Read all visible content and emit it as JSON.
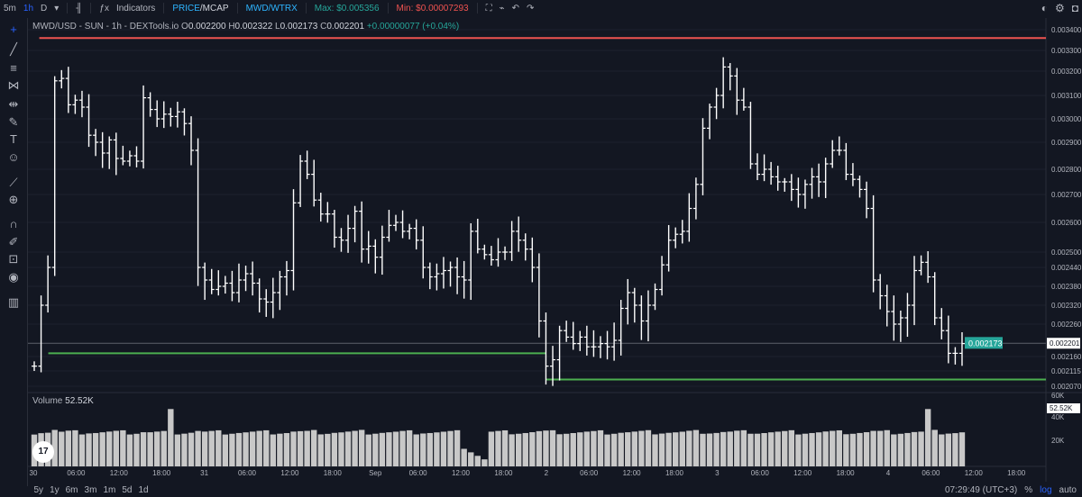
{
  "topbar": {
    "intervals": [
      "5m",
      "1h",
      "D"
    ],
    "indicators_label": "Indicators",
    "price_label": "PRICE",
    "mcap_label": "MCAP",
    "pair_toggle": "MWD/WTRX",
    "max_label": "Max: $0.005356",
    "min_label": "Min: $0.00007293",
    "icons": [
      "bar-style-icon",
      "indicators-icon",
      "fullscreen-icon",
      "chart-icon",
      "undo-icon",
      "redo-icon",
      "settings-icon",
      "camera-icon",
      "theme-icon"
    ]
  },
  "legend": {
    "symbol": "MWD/USD - SUN - 1h - DEXTools.io",
    "o_label": "O",
    "o_value": "0.002200",
    "h_label": "H",
    "h_value": "0.002322",
    "l_label": "L",
    "l_value": "0.002173",
    "c_label": "C",
    "c_value": "0.002201",
    "change": "+0.00000077 (+0.04%)"
  },
  "left_tools": [
    "crosshair-icon",
    "trendline-icon",
    "fib-icon",
    "pattern-icon",
    "prediction-icon",
    "brush-icon",
    "text-icon",
    "emoji-icon",
    "ruler-icon",
    "zoom-icon",
    "magnet-icon",
    "lock-drawings-icon",
    "lock-icon",
    "eye-icon",
    "trash-icon"
  ],
  "volume": {
    "label": "Volume",
    "value": "52.52K"
  },
  "tv_logo": "17",
  "bottombar": {
    "ranges": [
      "5y",
      "1y",
      "6m",
      "3m",
      "1m",
      "5d",
      "1d"
    ],
    "clock": "07:29:49 (UTC+3)",
    "percent": "%",
    "log": "log",
    "auto": "auto"
  },
  "colors": {
    "background": "#131722",
    "resistance": "#ef5350",
    "support": "#4caf50",
    "bars": "#ffffff",
    "volume": "#c8c8c8",
    "price_tag": "#26a69a"
  },
  "chart_data": {
    "type": "ohlc",
    "price_axis": {
      "ticks": [
        "0.003400",
        "0.003300",
        "0.003200",
        "0.003100",
        "0.003000",
        "0.002900",
        "0.002800",
        "0.002700",
        "0.002600",
        "0.002500",
        "0.002440",
        "0.002380",
        "0.002320",
        "0.002260",
        "0.002160",
        "0.002115",
        "0.002070"
      ],
      "current_price": "0.002201",
      "last_tag": "0.002173",
      "ylim": [
        0.00205,
        0.00343
      ]
    },
    "time_axis": [
      "30",
      "06:00",
      "12:00",
      "18:00",
      "31",
      "06:00",
      "12:00",
      "18:00",
      "Sep",
      "06:00",
      "12:00",
      "18:00",
      "2",
      "06:00",
      "12:00",
      "18:00",
      "3",
      "06:00",
      "12:00",
      "18:00",
      "4",
      "06:00",
      "12:00",
      "18:00"
    ],
    "volume_axis": [
      "60K",
      "40K",
      "20K"
    ],
    "resistance_level": 0.00336,
    "support_levels": [
      0.00217,
      0.00209
    ],
    "closes": [
      0.00213,
      0.00232,
      0.00244,
      0.00316,
      0.00317,
      0.00306,
      0.00308,
      0.00305,
      0.00293,
      0.0029,
      0.00286,
      0.00291,
      0.00284,
      0.00283,
      0.00285,
      0.00283,
      0.00309,
      0.00304,
      0.003,
      0.00302,
      0.00301,
      0.00303,
      0.00298,
      0.00287,
      0.00244,
      0.0024,
      0.00237,
      0.00238,
      0.00239,
      0.00236,
      0.0024,
      0.00242,
      0.00239,
      0.00234,
      0.00233,
      0.00236,
      0.00241,
      0.00243,
      0.00267,
      0.00283,
      0.00278,
      0.00268,
      0.00263,
      0.00263,
      0.00255,
      0.00254,
      0.00258,
      0.00264,
      0.00251,
      0.00252,
      0.00248,
      0.00255,
      0.00259,
      0.0026,
      0.00257,
      0.00258,
      0.00254,
      0.00244,
      0.00241,
      0.00242,
      0.00243,
      0.00244,
      0.00241,
      0.0024,
      0.00257,
      0.00251,
      0.00249,
      0.00247,
      0.0025,
      0.0025,
      0.00257,
      0.00254,
      0.00251,
      0.00244,
      0.00227,
      0.00213,
      0.00215,
      0.00224,
      0.00222,
      0.0022,
      0.00222,
      0.00219,
      0.00219,
      0.0022,
      0.00219,
      0.00221,
      0.00231,
      0.00236,
      0.00232,
      0.00227,
      0.00232,
      0.00237,
      0.00245,
      0.00254,
      0.00256,
      0.00257,
      0.00265,
      0.00274,
      0.00296,
      0.00305,
      0.0031,
      0.00322,
      0.00318,
      0.00308,
      0.00305,
      0.00282,
      0.00278,
      0.0028,
      0.00277,
      0.00275,
      0.00275,
      0.00272,
      0.0027,
      0.00274,
      0.00277,
      0.00275,
      0.00282,
      0.00287,
      0.00287,
      0.00278,
      0.00276,
      0.00272,
      0.00265,
      0.0024,
      0.00235,
      0.0023,
      0.00226,
      0.00228,
      0.00232,
      0.00243,
      0.00246,
      0.00241,
      0.00228,
      0.00224,
      0.00217,
      0.00217,
      0.0022
    ]
  }
}
